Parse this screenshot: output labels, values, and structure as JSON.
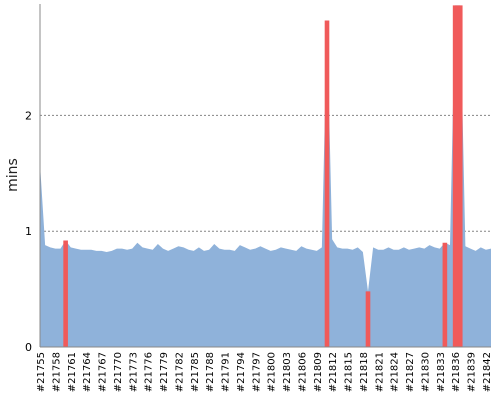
{
  "chart_data": {
    "type": "area",
    "title": "",
    "xlabel": "",
    "ylabel": "mins",
    "ylim": [
      0,
      2.95
    ],
    "yticks": [
      0,
      1,
      2
    ],
    "grid": "horizontal-dotted",
    "colors": {
      "area": "#8fb2da",
      "highlight": "#f05a5a",
      "grid": "#666666",
      "axis": "#888888"
    },
    "x": [
      "#21755",
      "#21756",
      "#21757",
      "#21758",
      "#21759",
      "#21760",
      "#21761",
      "#21762",
      "#21763",
      "#21764",
      "#21765",
      "#21766",
      "#21767",
      "#21768",
      "#21769",
      "#21770",
      "#21771",
      "#21772",
      "#21773",
      "#21774",
      "#21775",
      "#21776",
      "#21777",
      "#21778",
      "#21779",
      "#21780",
      "#21781",
      "#21782",
      "#21783",
      "#21784",
      "#21785",
      "#21786",
      "#21787",
      "#21788",
      "#21789",
      "#21790",
      "#21791",
      "#21792",
      "#21793",
      "#21794",
      "#21795",
      "#21796",
      "#21797",
      "#21798",
      "#21799",
      "#21800",
      "#21801",
      "#21802",
      "#21803",
      "#21804",
      "#21805",
      "#21806",
      "#21807",
      "#21808",
      "#21809",
      "#21810",
      "#21811",
      "#21812",
      "#21813",
      "#21814",
      "#21815",
      "#21816",
      "#21817",
      "#21818",
      "#21819",
      "#21820",
      "#21821",
      "#21822",
      "#21823",
      "#21824",
      "#21825",
      "#21826",
      "#21827",
      "#21828",
      "#21829",
      "#21830",
      "#21831",
      "#21832",
      "#21833",
      "#21834",
      "#21835",
      "#21836",
      "#21837",
      "#21838",
      "#21839",
      "#21840",
      "#21841",
      "#21842",
      "#21843"
    ],
    "tick_labels": [
      "#21755",
      "#21758",
      "#21761",
      "#21764",
      "#21767",
      "#21770",
      "#21773",
      "#21776",
      "#21779",
      "#21782",
      "#21785",
      "#21788",
      "#21791",
      "#21794",
      "#21797",
      "#21800",
      "#21803",
      "#21806",
      "#21809",
      "#21812",
      "#21815",
      "#21818",
      "#21821",
      "#21824",
      "#21827",
      "#21830",
      "#21833",
      "#21836",
      "#21839",
      "#21842"
    ],
    "series": [
      {
        "values": [
          1.58,
          0.88,
          0.86,
          0.85,
          0.85,
          0.92,
          0.86,
          0.85,
          0.84,
          0.84,
          0.84,
          0.83,
          0.83,
          0.82,
          0.83,
          0.85,
          0.85,
          0.84,
          0.85,
          0.9,
          0.86,
          0.85,
          0.84,
          0.89,
          0.85,
          0.83,
          0.85,
          0.87,
          0.86,
          0.84,
          0.83,
          0.86,
          0.83,
          0.84,
          0.89,
          0.85,
          0.84,
          0.84,
          0.83,
          0.88,
          0.86,
          0.84,
          0.85,
          0.87,
          0.85,
          0.83,
          0.84,
          0.86,
          0.85,
          0.84,
          0.83,
          0.87,
          0.85,
          0.84,
          0.83,
          0.86,
          2.82,
          0.93,
          0.86,
          0.85,
          0.85,
          0.84,
          0.86,
          0.82,
          0.48,
          0.86,
          0.84,
          0.84,
          0.86,
          0.84,
          0.84,
          0.86,
          0.84,
          0.85,
          0.86,
          0.85,
          0.88,
          0.86,
          0.85,
          0.9,
          0.88,
          2.95,
          2.95,
          0.87,
          0.85,
          0.83,
          0.86,
          0.84,
          0.85
        ],
        "highlight_indices": [
          5,
          56,
          64,
          79,
          81,
          82
        ]
      }
    ]
  }
}
